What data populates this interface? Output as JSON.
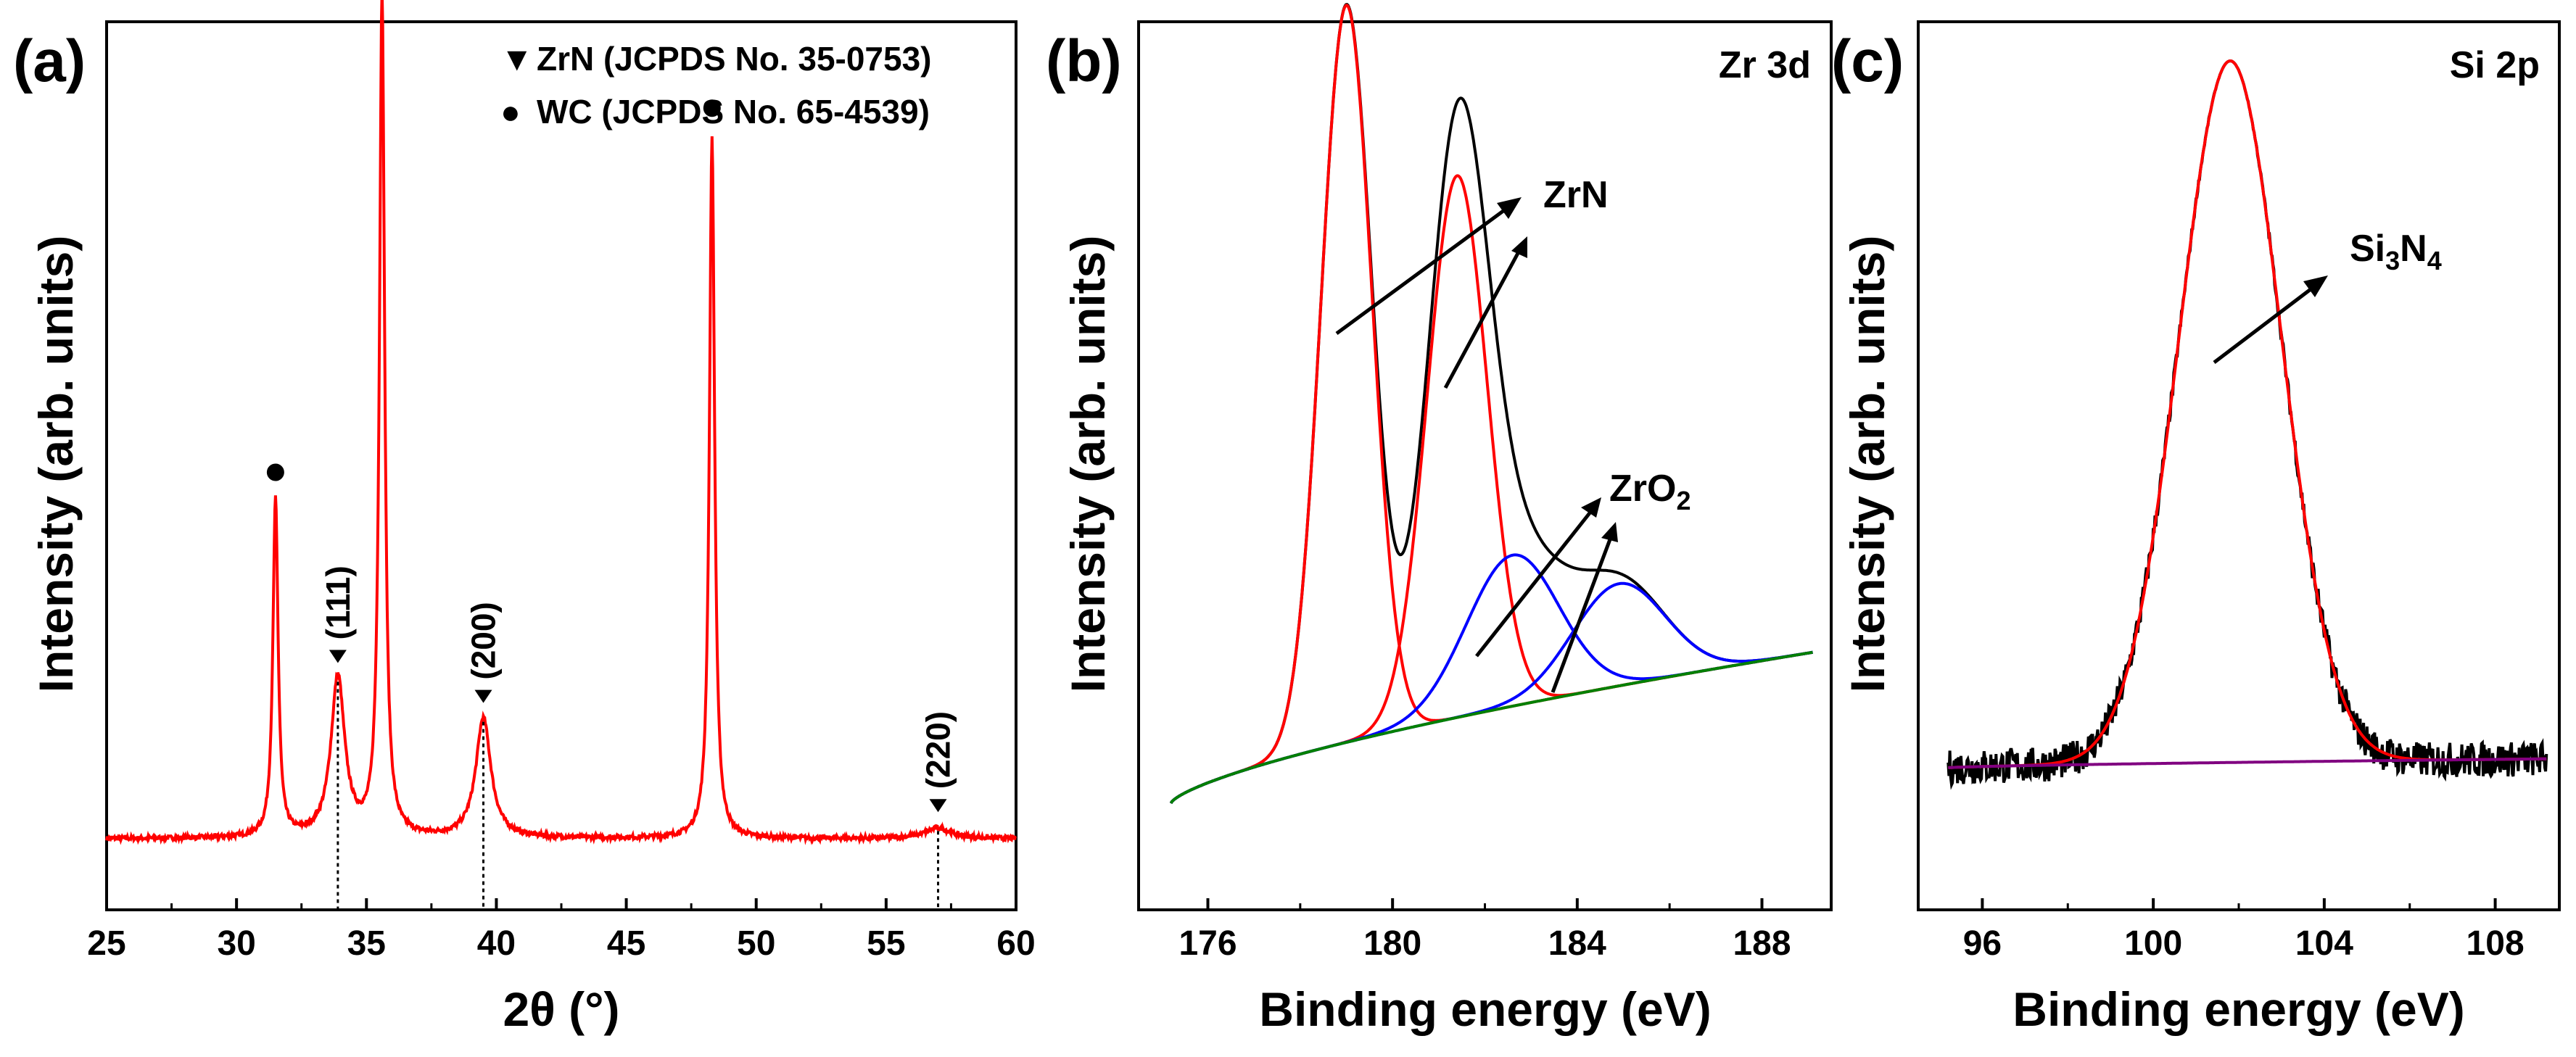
{
  "colors": {
    "red": "#ff0000",
    "black": "#000000",
    "blue": "#0000ff",
    "green": "#008000",
    "purple": "#800080"
  },
  "chart_data": [
    {
      "panel": "(a)",
      "type": "line",
      "title": "",
      "xlabel": "2θ (°)",
      "ylabel": "Intensity (arb. units)",
      "xlim": [
        25,
        60
      ],
      "ylim": [
        0,
        100
      ],
      "xticks": [
        "25",
        "30",
        "35",
        "40",
        "45",
        "50",
        "55",
        "60"
      ],
      "series": [
        {
          "name": "XRD pattern",
          "color": "red",
          "peaks": [
            {
              "x": 31.5,
              "height": 38,
              "width": 0.12
            },
            {
              "x": 33.9,
              "height": 18,
              "width": 0.32
            },
            {
              "x": 35.6,
              "height": 95,
              "width": 0.12
            },
            {
              "x": 39.5,
              "height": 13.5,
              "width": 0.35
            },
            {
              "x": 48.3,
              "height": 79,
              "width": 0.12
            },
            {
              "x": 57.0,
              "height": 1.2,
              "width": 0.6
            }
          ],
          "baseline": 8
        }
      ],
      "legend": [
        {
          "symbol": "▼",
          "label": "ZrN (JCPDS No. 35-0753)"
        },
        {
          "symbol": "●",
          "label": "WC (JCPDS No. 65-4539)"
        }
      ],
      "annotations": {
        "wc_markers": [
          31.5,
          35.6,
          48.3
        ],
        "zrn_markers": [
          {
            "x": 33.9,
            "label": "(111)"
          },
          {
            "x": 39.5,
            "label": "(200)"
          },
          {
            "x": 57.0,
            "label": "(220)"
          }
        ]
      }
    },
    {
      "panel": "(b)",
      "type": "line",
      "title": "Zr 3d",
      "xlabel": "Binding energy (eV)",
      "ylabel": "Intensity (arb. units)",
      "xlim": [
        174.5,
        189.5
      ],
      "ylim": [
        0,
        100
      ],
      "xticks": [
        "176",
        "180",
        "184",
        "188"
      ],
      "baseline_range": [
        175.2,
        189.1
      ],
      "series": [
        {
          "name": "measured",
          "color": "black",
          "peaks": [
            {
              "x": 179.0,
              "h": 83,
              "s": 0.55
            },
            {
              "x": 181.4,
              "h": 61,
              "s": 0.65
            },
            {
              "x": 182.6,
              "h": 17,
              "s": 1.0
            },
            {
              "x": 184.9,
              "h": 11.5,
              "s": 1.0
            }
          ]
        },
        {
          "name": "ZrN 3d5/2",
          "color": "red",
          "peaks": [
            {
              "x": 179.0,
              "h": 83,
              "s": 0.55
            }
          ]
        },
        {
          "name": "ZrN 3d3/2",
          "color": "red",
          "peaks": [
            {
              "x": 181.4,
              "h": 61,
              "s": 0.65
            }
          ]
        },
        {
          "name": "ZrO2 3d5/2",
          "color": "blue",
          "peaks": [
            {
              "x": 182.6,
              "h": 17,
              "s": 1.0
            }
          ]
        },
        {
          "name": "ZrO2 3d3/2",
          "color": "blue",
          "peaks": [
            {
              "x": 184.9,
              "h": 11.5,
              "s": 1.0
            }
          ]
        },
        {
          "name": "background",
          "color": "green",
          "peaks": []
        }
      ],
      "labels": {
        "zrn": "ZrN",
        "zro2_main": "ZrO",
        "zro2_sub": "2"
      }
    },
    {
      "panel": "(c)",
      "type": "line",
      "title": "Si 2p",
      "xlabel": "Binding energy (eV)",
      "ylabel": "Intensity (arb. units)",
      "xlim": [
        94.5,
        109.5
      ],
      "ylim": [
        0,
        100
      ],
      "xticks": [
        "96",
        "100",
        "104",
        "108"
      ],
      "baseline_range": [
        95.2,
        109.2
      ],
      "series": [
        {
          "name": "measured",
          "color": "black",
          "peaks": [
            {
              "x": 101.8,
              "h": 79,
              "s": 1.2
            }
          ]
        },
        {
          "name": "fit",
          "color": "red",
          "peaks": [
            {
              "x": 101.8,
              "h": 79,
              "s": 1.2
            }
          ]
        },
        {
          "name": "background",
          "color": "purple",
          "peaks": []
        }
      ],
      "labels": {
        "si": "Si",
        "sub3": "3",
        "n": "N",
        "sub4": "4"
      }
    }
  ]
}
